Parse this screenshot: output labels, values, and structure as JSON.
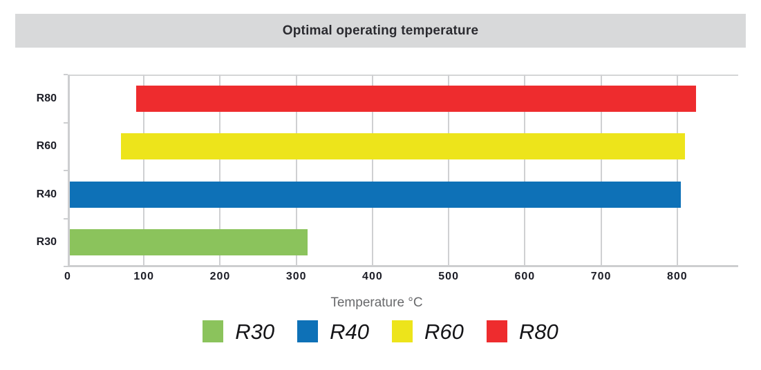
{
  "title": "Optimal operating temperature",
  "chart_data": {
    "type": "bar",
    "orientation": "horizontal",
    "title": "Optimal operating temperature",
    "xlabel": "Temperature °C",
    "ylabel": "",
    "xlim": [
      0,
      880
    ],
    "xticks": [
      0,
      100,
      200,
      300,
      400,
      500,
      600,
      700,
      800
    ],
    "grid": true,
    "legend_position": "bottom",
    "categories_top_to_bottom": [
      "R80",
      "R60",
      "R40",
      "R30"
    ],
    "series": [
      {
        "name": "R30",
        "color": "#8bc35c",
        "range_start": 0,
        "range_end": 315
      },
      {
        "name": "R40",
        "color": "#0e71b7",
        "range_start": 0,
        "range_end": 805
      },
      {
        "name": "R60",
        "color": "#ede41b",
        "range_start": 70,
        "range_end": 810
      },
      {
        "name": "R80",
        "color": "#ee2c2e",
        "range_start": 90,
        "range_end": 825
      }
    ]
  },
  "colors": {
    "title_bar_bg": "#d8d9da",
    "grid": "#cfd0d2",
    "axis": "#cdced0",
    "tick_text": "#1c1d26",
    "axis_title_text": "#68696b",
    "legend_text": "#151518"
  }
}
